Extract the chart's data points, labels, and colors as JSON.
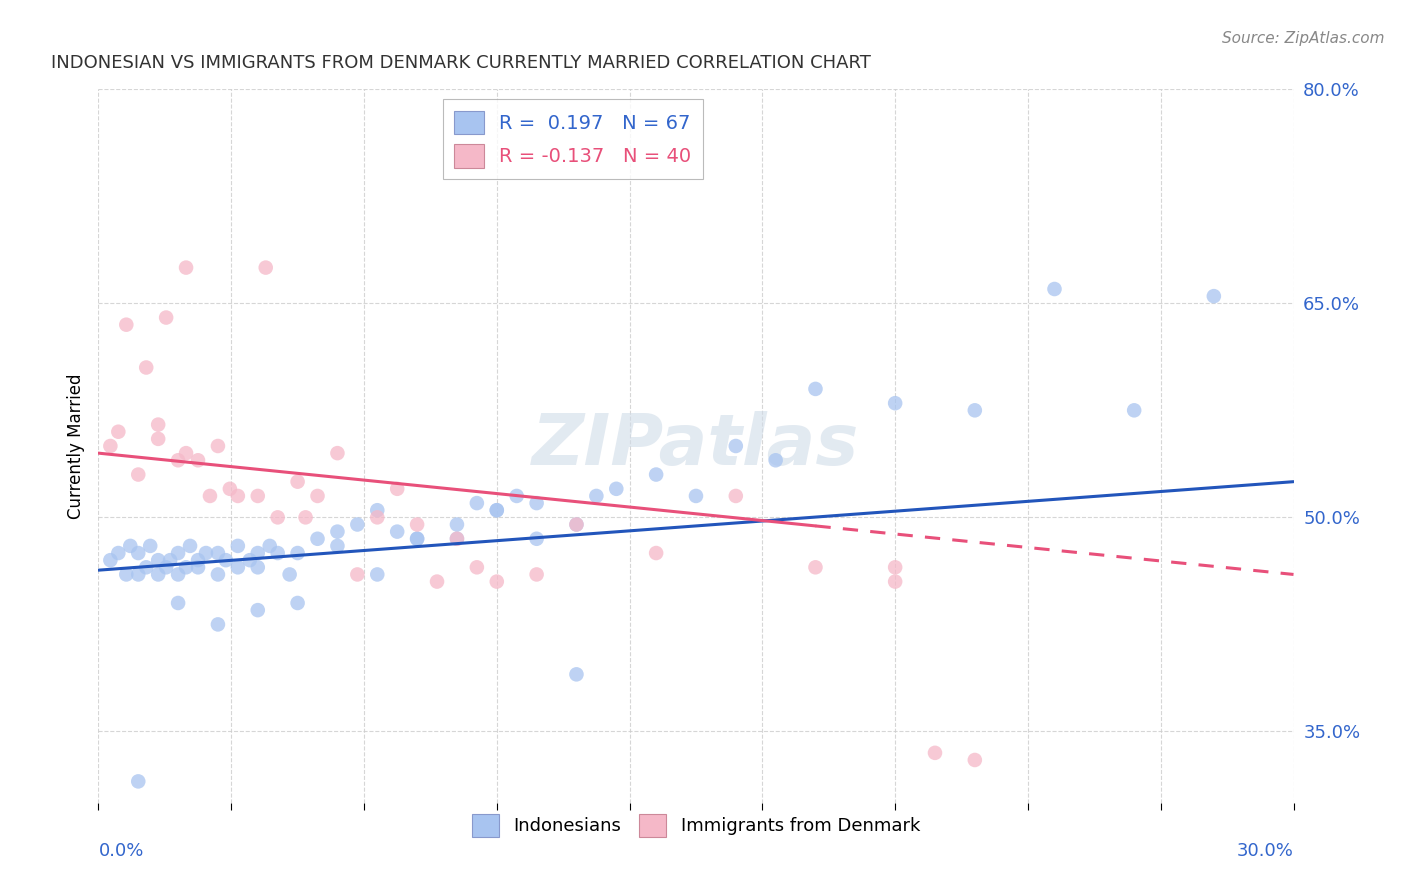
{
  "title": "INDONESIAN VS IMMIGRANTS FROM DENMARK CURRENTLY MARRIED CORRELATION CHART",
  "source": "Source: ZipAtlas.com",
  "ylabel_label": "Currently Married",
  "xmin": 0.0,
  "xmax": 30.0,
  "ymin": 30.0,
  "ymax": 80.0,
  "legend_entry1": "R =  0.197   N = 67",
  "legend_entry2": "R = -0.137   N = 40",
  "legend_color1": "#a8c4f0",
  "legend_color2": "#f5b8c8",
  "indonesian_color": "#a8c4f0",
  "denmark_color": "#f5b8c8",
  "trendline_blue": "#2255bb",
  "trendline_pink": "#e8507a",
  "watermark": "ZIPatlas",
  "indonesian_x": [
    0.3,
    0.5,
    0.7,
    0.8,
    1.0,
    1.0,
    1.2,
    1.3,
    1.5,
    1.5,
    1.7,
    1.8,
    2.0,
    2.0,
    2.2,
    2.3,
    2.5,
    2.5,
    2.7,
    3.0,
    3.0,
    3.2,
    3.5,
    3.5,
    3.8,
    4.0,
    4.0,
    4.3,
    4.5,
    4.8,
    5.0,
    5.5,
    6.0,
    6.5,
    7.0,
    7.5,
    8.0,
    9.0,
    9.5,
    10.0,
    10.5,
    11.0,
    12.0,
    12.5,
    13.0,
    14.0,
    15.0,
    16.0,
    17.0,
    18.0,
    20.0,
    22.0,
    24.0,
    26.0,
    28.0,
    1.0,
    2.0,
    3.0,
    4.0,
    5.0,
    6.0,
    7.0,
    8.0,
    9.0,
    10.0,
    11.0,
    12.0
  ],
  "indonesian_y": [
    47.0,
    47.5,
    46.0,
    48.0,
    47.5,
    46.0,
    46.5,
    48.0,
    47.0,
    46.0,
    46.5,
    47.0,
    46.0,
    47.5,
    46.5,
    48.0,
    47.0,
    46.5,
    47.5,
    47.5,
    46.0,
    47.0,
    46.5,
    48.0,
    47.0,
    47.5,
    46.5,
    48.0,
    47.5,
    46.0,
    47.5,
    48.5,
    48.0,
    49.5,
    50.5,
    49.0,
    48.5,
    49.5,
    51.0,
    50.5,
    51.5,
    51.0,
    49.5,
    51.5,
    52.0,
    53.0,
    51.5,
    55.0,
    54.0,
    59.0,
    58.0,
    57.5,
    66.0,
    57.5,
    65.5,
    31.5,
    44.0,
    42.5,
    43.5,
    44.0,
    49.0,
    46.0,
    48.5,
    48.5,
    50.5,
    48.5,
    39.0
  ],
  "denmark_x": [
    0.3,
    0.5,
    0.7,
    1.0,
    1.2,
    1.5,
    1.7,
    2.0,
    2.2,
    2.5,
    2.8,
    3.0,
    3.5,
    4.0,
    4.5,
    5.0,
    5.5,
    6.0,
    7.0,
    8.0,
    9.0,
    10.0,
    11.0,
    12.0,
    14.0,
    16.0,
    18.0,
    20.0,
    1.5,
    2.2,
    3.3,
    4.2,
    5.2,
    6.5,
    7.5,
    8.5,
    9.5,
    20.0,
    21.0,
    22.0
  ],
  "denmark_y": [
    55.0,
    56.0,
    63.5,
    53.0,
    60.5,
    56.5,
    64.0,
    54.0,
    54.5,
    54.0,
    51.5,
    55.0,
    51.5,
    51.5,
    50.0,
    52.5,
    51.5,
    54.5,
    50.0,
    49.5,
    48.5,
    45.5,
    46.0,
    49.5,
    47.5,
    51.5,
    46.5,
    45.5,
    55.5,
    67.5,
    52.0,
    67.5,
    50.0,
    46.0,
    52.0,
    45.5,
    46.5,
    46.5,
    33.5,
    33.0
  ],
  "yticks": [
    35.0,
    50.0,
    65.0,
    80.0
  ],
  "xticks_count": 9,
  "trendline_blue_y0": 46.3,
  "trendline_blue_y1": 52.5,
  "trendline_pink_y0": 54.5,
  "trendline_pink_y1": 46.0,
  "trendline_pink_solid_end": 18.0
}
